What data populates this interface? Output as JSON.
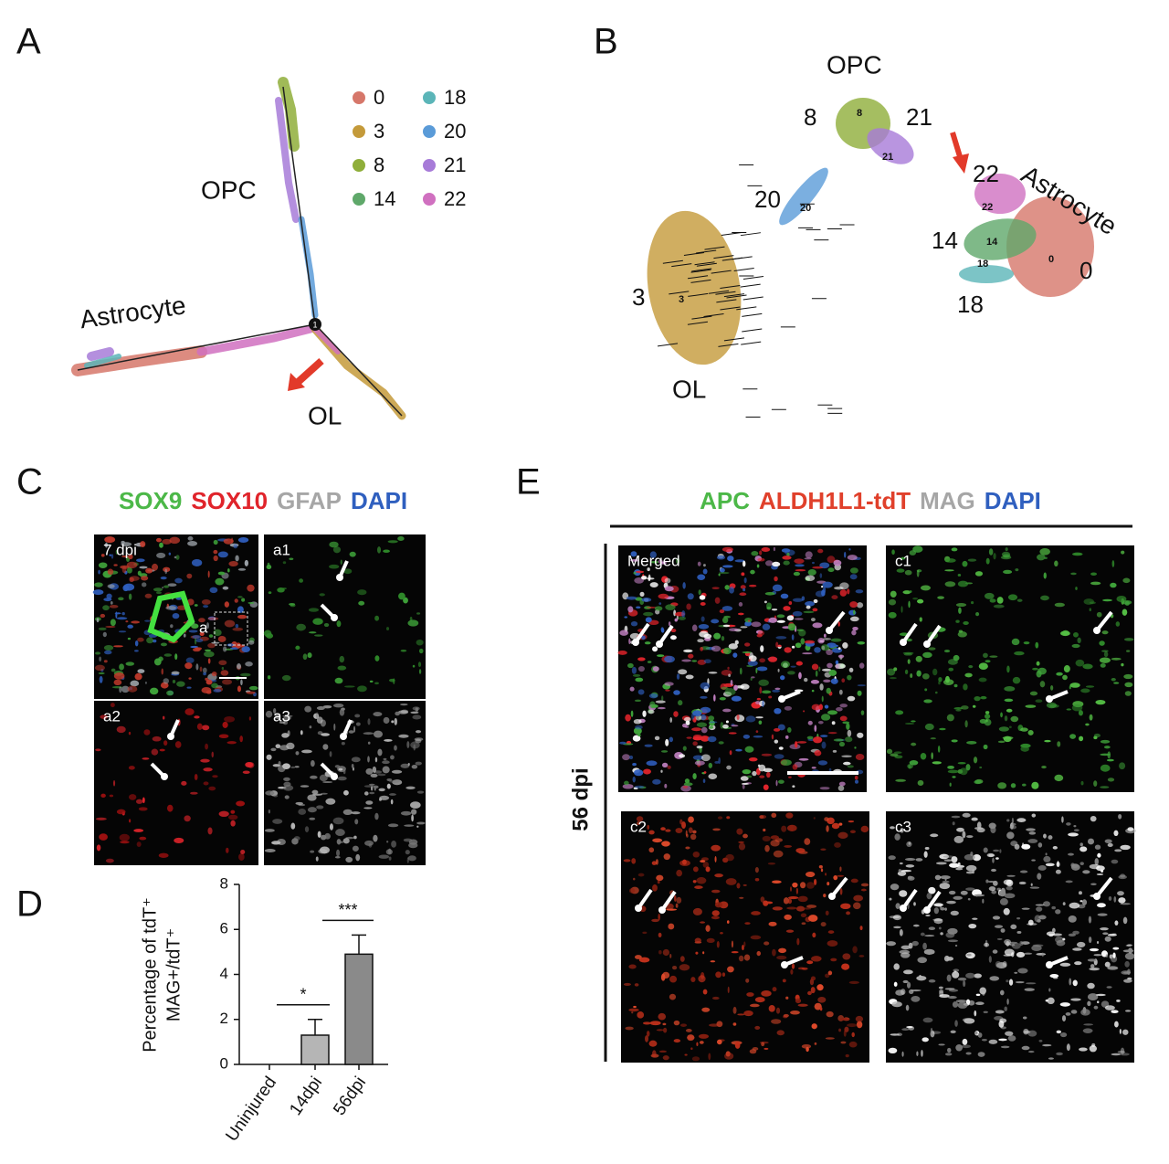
{
  "panel_A": {
    "letter": "A",
    "legend": [
      {
        "name": "0",
        "color": "#d6776a"
      },
      {
        "name": "3",
        "color": "#c49a3a"
      },
      {
        "name": "8",
        "color": "#8fae3a"
      },
      {
        "name": "14",
        "color": "#5fa86a"
      },
      {
        "name": "18",
        "color": "#5bb5b8"
      },
      {
        "name": "20",
        "color": "#5a9bd8"
      },
      {
        "name": "21",
        "color": "#a77bd8"
      },
      {
        "name": "22",
        "color": "#d070c0"
      }
    ],
    "labels": {
      "opc": "OPC",
      "astrocyte": "Astrocyte",
      "ol": "OL"
    },
    "node": "1"
  },
  "panel_B": {
    "letter": "B",
    "labels": {
      "opc": "OPC",
      "astrocyte": "Astrocyte",
      "ol": "OL"
    },
    "clusters": [
      "8",
      "21",
      "20",
      "22",
      "14",
      "0",
      "18",
      "3"
    ]
  },
  "panel_C": {
    "letter": "C",
    "stains": [
      {
        "text": "SOX9",
        "color": "#4cb848"
      },
      {
        "text": "SOX10",
        "color": "#e0242b"
      },
      {
        "text": "GFAP",
        "color": "#a6a6a6"
      },
      {
        "text": "DAPI",
        "color": "#2f5fbf"
      }
    ],
    "tiles": [
      "7 dpi",
      "a1",
      "a2",
      "a3"
    ],
    "inset": "a"
  },
  "chart_data": {
    "type": "bar",
    "letter": "D",
    "ylabel": [
      "Percentage of tdT⁺",
      "MAG+/tdT⁺"
    ],
    "categories": [
      "Uninjured",
      "14dpi",
      "56dpi"
    ],
    "values": [
      0,
      1.3,
      4.9
    ],
    "errors": [
      null,
      0.7,
      0.85
    ],
    "colors": [
      "#b5b5b5",
      "#b5b5b5",
      "#8a8a8a"
    ],
    "ylim": [
      0,
      8
    ],
    "yticks": [
      0,
      2,
      4,
      6,
      8
    ],
    "significance": [
      "*",
      "***"
    ]
  },
  "panel_E": {
    "letter": "E",
    "stains": [
      {
        "text": "APC",
        "color": "#4cb848"
      },
      {
        "text": "ALDH1L1-tdT",
        "color": "#e0402b"
      },
      {
        "text": "MAG",
        "color": "#a6a6a6"
      },
      {
        "text": "DAPI",
        "color": "#2f5fbf"
      }
    ],
    "side_label": "56 dpi",
    "tiles": [
      "Merged",
      "c1",
      "c2",
      "c3"
    ]
  }
}
